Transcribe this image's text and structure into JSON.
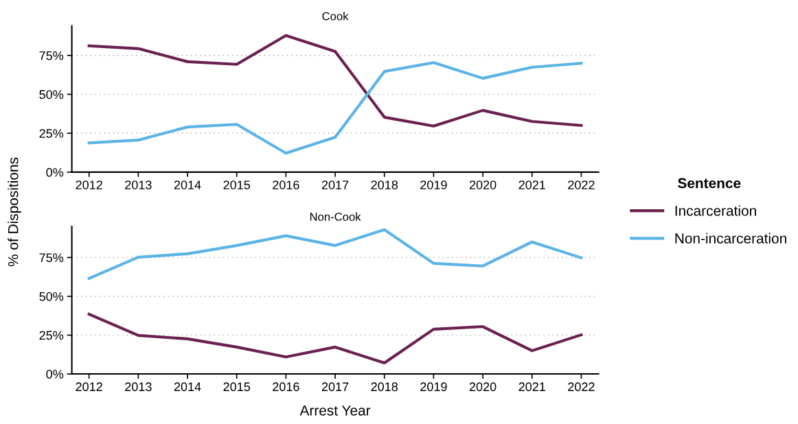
{
  "chart_data": [
    {
      "type": "line",
      "title": "Cook",
      "ylabel": "% of Dispositions",
      "legend_title": "Sentence",
      "legend": "right",
      "grid": "y",
      "line_style": "solid",
      "marker": "none",
      "categories": [
        "2012",
        "2013",
        "2014",
        "2015",
        "2016",
        "2017",
        "2018",
        "2019",
        "2020",
        "2021",
        "2022"
      ],
      "ylim": [
        0,
        94
      ],
      "yticks": [
        {
          "value": 0,
          "label": "0%"
        },
        {
          "value": 25,
          "label": "25%"
        },
        {
          "value": 50,
          "label": "50%"
        },
        {
          "value": 75,
          "label": "75%"
        }
      ],
      "series": [
        {
          "name": "Incarceration",
          "color": "#6a2150",
          "values": [
            81.2,
            79.4,
            71,
            69.3,
            87.8,
            77.6,
            35.3,
            29.6,
            39.7,
            32.6,
            30.0
          ]
        },
        {
          "name": "Non-incarceration",
          "color": "#5bb4e5",
          "values": [
            18.8,
            20.6,
            29,
            30.7,
            12.2,
            22.4,
            64.7,
            70.4,
            60.3,
            67.4,
            70.0
          ]
        }
      ]
    },
    {
      "type": "line",
      "title": "Non-Cook",
      "xlabel": "Arrest Year",
      "grid": "y",
      "line_style": "solid",
      "marker": "none",
      "categories": [
        "2012",
        "2013",
        "2014",
        "2015",
        "2016",
        "2017",
        "2018",
        "2019",
        "2020",
        "2021",
        "2022"
      ],
      "ylim": [
        0,
        95
      ],
      "yticks": [
        {
          "value": 0,
          "label": "0%"
        },
        {
          "value": 25,
          "label": "25%"
        },
        {
          "value": 50,
          "label": "50%"
        },
        {
          "value": 75,
          "label": "75%"
        }
      ],
      "series": [
        {
          "color": "#6a2150",
          "values": [
            38.5,
            24.8,
            22.6,
            17.3,
            11,
            17.3,
            7.1,
            28.8,
            30.5,
            15,
            25.2
          ]
        },
        {
          "color": "#5bb4e5",
          "values": [
            61.5,
            75.2,
            77.4,
            82.7,
            89,
            82.7,
            92.9,
            71.2,
            69.5,
            85,
            74.8
          ]
        }
      ]
    }
  ]
}
